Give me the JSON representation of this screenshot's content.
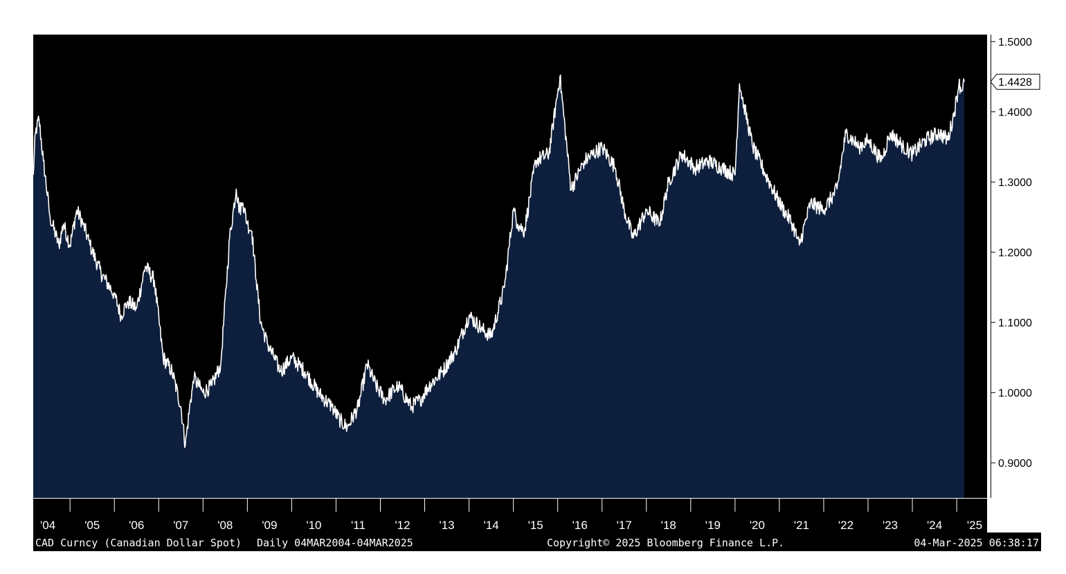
{
  "chart_data": {
    "type": "area",
    "y_axis_side": "right",
    "ylim": [
      0.85,
      1.51
    ],
    "xlim": [
      2004.17,
      2025.17
    ],
    "yticks": [
      "1.5000",
      "1.4000",
      "1.3000",
      "1.2000",
      "1.1000",
      "1.0000",
      "0.9000"
    ],
    "ytick_values": [
      1.5,
      1.4,
      1.3,
      1.2,
      1.1,
      1.0,
      0.9
    ],
    "xticks": [
      "'04",
      "'05",
      "'06",
      "'07",
      "'08",
      "'09",
      "'10",
      "'11",
      "'12",
      "'13",
      "'14",
      "'15",
      "'16",
      "'17",
      "'18",
      "'19",
      "'20",
      "'21",
      "'22",
      "'23",
      "'24",
      "'25"
    ],
    "last_value_label": "1.4428",
    "last_value": 1.4428,
    "line_color": "#ffffff",
    "fill_color": "#0d1f3c",
    "background_color": "#000000",
    "series": [
      {
        "x": [
          2004.17,
          2004.22,
          2004.3,
          2004.4,
          2004.55,
          2004.75,
          2004.85,
          2005.0,
          2005.15,
          2005.3,
          2005.45,
          2005.7,
          2006.0,
          2006.15,
          2006.3,
          2006.5,
          2006.7,
          2006.9,
          2007.1,
          2007.3,
          2007.5,
          2007.6,
          2007.72,
          2007.8,
          2007.9,
          2008.0,
          2008.2,
          2008.4,
          2008.6,
          2008.75,
          2008.82,
          2008.9,
          2009.0,
          2009.1,
          2009.2,
          2009.3,
          2009.45,
          2009.6,
          2009.75,
          2010.0,
          2010.3,
          2010.6,
          2010.9,
          2011.1,
          2011.25,
          2011.5,
          2011.7,
          2011.9,
          2012.1,
          2012.4,
          2012.7,
          2012.9,
          2013.1,
          2013.4,
          2013.7,
          2014.0,
          2014.3,
          2014.5,
          2014.8,
          2015.0,
          2015.1,
          2015.25,
          2015.5,
          2015.8,
          2016.05,
          2016.3,
          2016.6,
          2016.8,
          2017.0,
          2017.3,
          2017.5,
          2017.7,
          2018.0,
          2018.3,
          2018.5,
          2018.8,
          2019.1,
          2019.4,
          2019.7,
          2020.0,
          2020.1,
          2020.2,
          2020.4,
          2020.7,
          2021.0,
          2021.3,
          2021.45,
          2021.7,
          2022.0,
          2022.3,
          2022.5,
          2022.8,
          2023.0,
          2023.3,
          2023.5,
          2023.8,
          2024.0,
          2024.3,
          2024.6,
          2024.8,
          2024.95,
          2025.05,
          2025.12,
          2025.17
        ],
        "values": [
          1.31,
          1.37,
          1.39,
          1.33,
          1.25,
          1.21,
          1.24,
          1.21,
          1.26,
          1.24,
          1.21,
          1.17,
          1.14,
          1.11,
          1.13,
          1.12,
          1.18,
          1.16,
          1.05,
          1.03,
          0.98,
          0.925,
          0.99,
          1.02,
          1.01,
          1.0,
          1.01,
          1.04,
          1.22,
          1.29,
          1.26,
          1.27,
          1.24,
          1.23,
          1.16,
          1.1,
          1.07,
          1.05,
          1.03,
          1.05,
          1.03,
          1.0,
          0.98,
          0.96,
          0.95,
          0.98,
          1.04,
          1.01,
          0.99,
          1.01,
          0.98,
          0.99,
          1.01,
          1.03,
          1.06,
          1.11,
          1.09,
          1.08,
          1.15,
          1.26,
          1.24,
          1.23,
          1.33,
          1.34,
          1.45,
          1.29,
          1.33,
          1.34,
          1.35,
          1.32,
          1.26,
          1.22,
          1.26,
          1.24,
          1.3,
          1.34,
          1.32,
          1.33,
          1.32,
          1.31,
          1.44,
          1.41,
          1.35,
          1.31,
          1.27,
          1.24,
          1.21,
          1.27,
          1.26,
          1.29,
          1.37,
          1.35,
          1.36,
          1.33,
          1.37,
          1.35,
          1.34,
          1.36,
          1.37,
          1.36,
          1.4,
          1.44,
          1.43,
          1.4428
        ]
      }
    ]
  },
  "footer": {
    "ticker": "CAD Curncy (Canadian Dollar Spot)",
    "range": "Daily 04MAR2004-04MAR2025",
    "copyright": "Copyright© 2025 Bloomberg Finance L.P.",
    "timestamp": "04-Mar-2025 06:38:17"
  }
}
